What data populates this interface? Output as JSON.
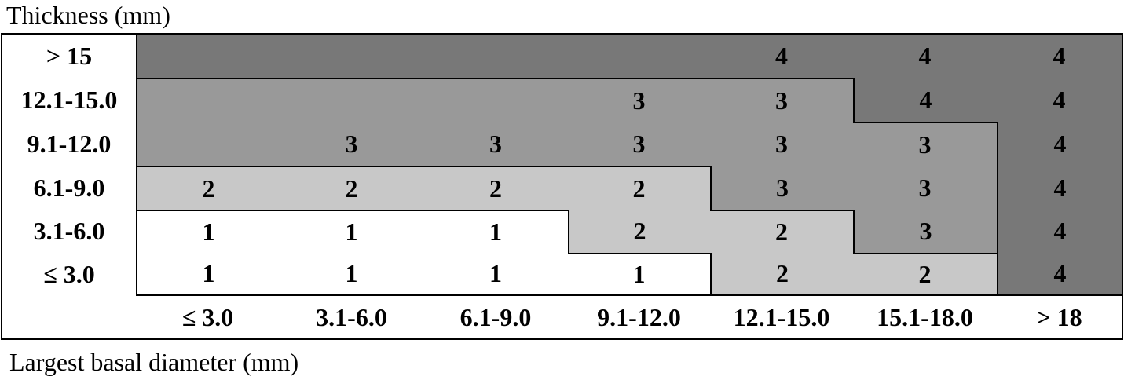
{
  "title": "Thickness (mm)",
  "footer": "Largest basal diameter (mm)",
  "row_labels": [
    "> 15",
    "12.1-15.0",
    "9.1-12.0",
    "6.1-9.0",
    "3.1-6.0",
    "≤ 3.0"
  ],
  "column_labels": [
    "≤ 3.0",
    "3.1-6.0",
    "6.1-9.0",
    "9.1-12.0",
    "12.1-15.0",
    "15.1-18.0",
    "> 18"
  ],
  "cells": [
    [
      null,
      null,
      null,
      null,
      "4",
      "4",
      "4"
    ],
    [
      null,
      null,
      null,
      "3",
      "3",
      "4",
      "4"
    ],
    [
      null,
      "3",
      "3",
      "3",
      "3",
      "3",
      "4"
    ],
    [
      "2",
      "2",
      "2",
      "2",
      "3",
      "3",
      "4"
    ],
    [
      "1",
      "1",
      "1",
      "2",
      "2",
      "3",
      "4"
    ],
    [
      "1",
      "1",
      "1",
      "1",
      "2",
      "2",
      "4"
    ]
  ],
  "fills": [
    [
      "#787878",
      "#787878",
      "#787878",
      "#787878",
      "#787878",
      "#787878",
      "#787878"
    ],
    [
      "#999999",
      "#999999",
      "#999999",
      "#999999",
      "#999999",
      "#787878",
      "#787878"
    ],
    [
      "#999999",
      "#999999",
      "#999999",
      "#999999",
      "#999999",
      "#999999",
      "#787878"
    ],
    [
      "#c8c8c8",
      "#c8c8c8",
      "#c8c8c8",
      "#c8c8c8",
      "#999999",
      "#999999",
      "#787878"
    ],
    [
      "#ffffff",
      "#ffffff",
      "#ffffff",
      "#c8c8c8",
      "#c8c8c8",
      "#999999",
      "#787878"
    ],
    [
      "#ffffff",
      "#ffffff",
      "#ffffff",
      "#ffffff",
      "#c8c8c8",
      "#c8c8c8",
      "#787878"
    ]
  ]
}
